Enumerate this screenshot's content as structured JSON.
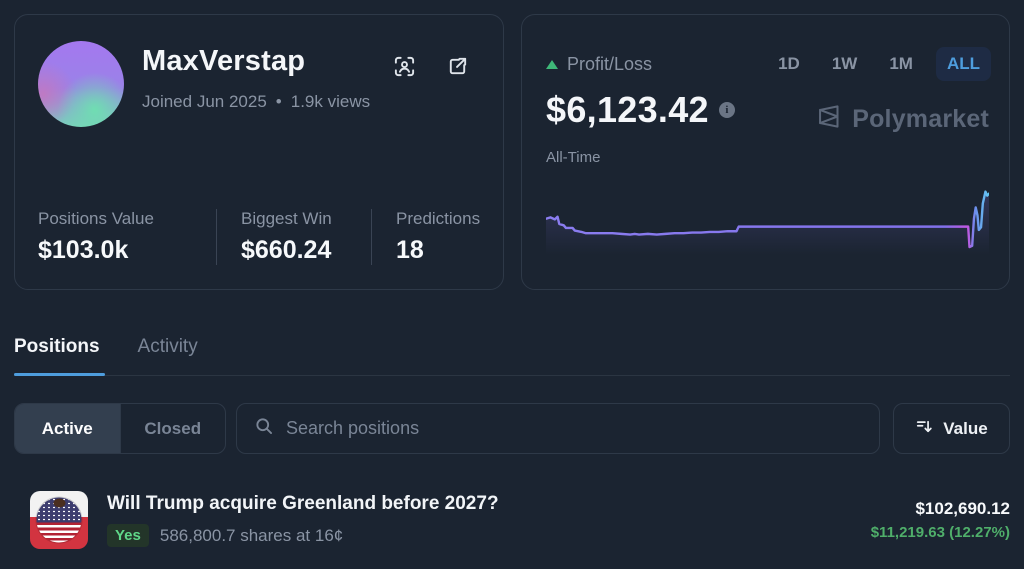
{
  "profile": {
    "name": "MaxVerstap",
    "joined": "Joined Jun 2025",
    "separator": "•",
    "views": "1.9k views",
    "stats": [
      {
        "label": "Positions Value",
        "value": "$103.0k"
      },
      {
        "label": "Biggest Win",
        "value": "$660.24"
      },
      {
        "label": "Predictions",
        "value": "18"
      }
    ]
  },
  "pnl": {
    "label": "Profit/Loss",
    "value": "$6,123.42",
    "period": "All-Time",
    "ranges": [
      "1D",
      "1W",
      "1M",
      "ALL"
    ],
    "selected_range": "ALL",
    "brand": "Polymarket"
  },
  "chart_data": {
    "type": "line",
    "title": "Profit/Loss over time (All-Time sparkline)",
    "xlabel": "",
    "ylabel": "",
    "grid": false,
    "axes_hidden": true,
    "final_value": "$6,123.42",
    "y_scale": "normalized 0-100 (relative profit/loss height, 100 = chart top)",
    "points": [
      [
        0,
        55
      ],
      [
        1,
        57
      ],
      [
        2,
        54
      ],
      [
        2.6,
        58
      ],
      [
        3,
        47
      ],
      [
        4,
        45
      ],
      [
        4.5,
        41
      ],
      [
        6,
        41
      ],
      [
        6.5,
        37
      ],
      [
        8,
        35
      ],
      [
        9,
        33
      ],
      [
        11,
        33
      ],
      [
        13,
        33
      ],
      [
        15,
        33
      ],
      [
        17,
        32
      ],
      [
        19,
        31
      ],
      [
        20,
        32
      ],
      [
        21,
        31
      ],
      [
        23,
        32
      ],
      [
        25,
        31
      ],
      [
        27,
        32
      ],
      [
        29,
        33
      ],
      [
        31,
        33
      ],
      [
        33,
        34
      ],
      [
        35,
        34
      ],
      [
        37,
        35
      ],
      [
        39,
        35
      ],
      [
        41,
        36
      ],
      [
        43,
        36
      ],
      [
        43.5,
        43
      ],
      [
        48,
        43
      ],
      [
        55,
        43
      ],
      [
        62,
        43
      ],
      [
        70,
        43
      ],
      [
        78,
        43
      ],
      [
        85,
        43
      ],
      [
        90,
        43
      ],
      [
        94,
        43
      ],
      [
        95.3,
        43
      ],
      [
        95.6,
        12
      ],
      [
        96.2,
        14
      ],
      [
        96.6,
        55
      ],
      [
        97,
        72
      ],
      [
        97.4,
        60
      ],
      [
        97.7,
        38
      ],
      [
        98.2,
        42
      ],
      [
        98.6,
        78
      ],
      [
        99.2,
        96
      ],
      [
        99.6,
        90
      ],
      [
        100,
        93
      ]
    ],
    "line_gradient": [
      {
        "offset": 0,
        "color": "#8b7df0"
      },
      {
        "offset": 0.9,
        "color": "#8171ea"
      },
      {
        "offset": 0.952,
        "color": "#c156e0"
      },
      {
        "offset": 0.968,
        "color": "#6d8cec"
      },
      {
        "offset": 1,
        "color": "#63c8f2"
      }
    ],
    "fill_gradient": {
      "top": "rgba(133,117,238,0.22)",
      "bottom": "rgba(133,117,238,0)"
    }
  },
  "tabs": {
    "positions": "Positions",
    "activity": "Activity",
    "active": "Positions"
  },
  "filters": {
    "active_label": "Active",
    "closed_label": "Closed",
    "selected": "Active",
    "search_placeholder": "Search positions",
    "sort_label": "Value"
  },
  "positions": [
    {
      "title": "Will Trump acquire Greenland before 2027?",
      "outcome": "Yes",
      "shares": "586,800.7 shares at 16¢",
      "value": "$102,690.12",
      "pnl": "$11,219.63 (12.27%)"
    }
  ],
  "colors": {
    "accent_blue": "#4e9ddd",
    "positive_green": "#4fae6a",
    "badge_green": "#5fd789",
    "line_purple": "#8171ea",
    "muted_text": "#8a94a4",
    "border": "#2e3948",
    "background": "#1b2431"
  }
}
